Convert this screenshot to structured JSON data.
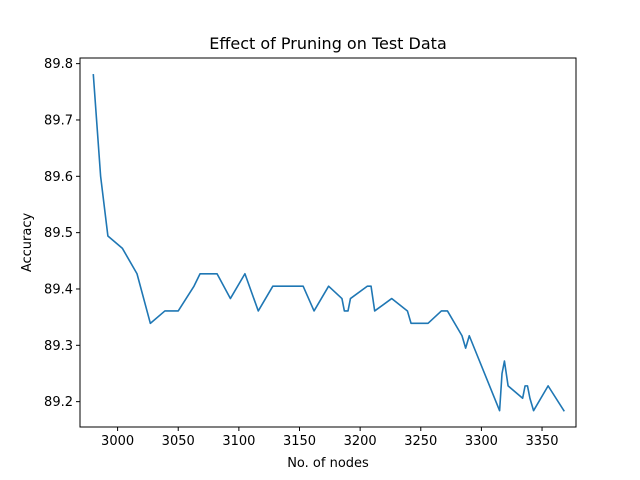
{
  "chart_data": {
    "type": "line",
    "title": "Effect of Pruning on Test Data",
    "xlabel": "No. of nodes",
    "ylabel": "Accuracy",
    "xlim": [
      2969,
      3378
    ],
    "ylim": [
      89.155,
      89.81
    ],
    "xticks": [
      3000,
      3050,
      3100,
      3150,
      3200,
      3250,
      3300,
      3350
    ],
    "yticks": [
      89.2,
      89.3,
      89.4,
      89.5,
      89.6,
      89.7,
      89.8
    ],
    "xtick_labels": [
      "3000",
      "3050",
      "3100",
      "3150",
      "3200",
      "3250",
      "3300",
      "3350"
    ],
    "ytick_labels": [
      "89.2",
      "89.3",
      "89.4",
      "89.5",
      "89.6",
      "89.7",
      "89.8"
    ],
    "grid": false,
    "line_color": "#1f77b4",
    "series": [
      {
        "x": [
          2980,
          2986,
          2992,
          3004,
          3016,
          3027,
          3039,
          3050,
          3063,
          3068,
          3082,
          3093,
          3105,
          3116,
          3128,
          3153,
          3162,
          3174,
          3185,
          3187,
          3190,
          3192,
          3206,
          3209,
          3212,
          3226,
          3239,
          3242,
          3256,
          3267,
          3272,
          3284,
          3287,
          3290,
          3315,
          3317,
          3319,
          3322,
          3334,
          3336,
          3338,
          3340,
          3343,
          3355,
          3368
        ],
        "y": [
          89.78,
          89.6,
          89.494,
          89.472,
          89.427,
          89.339,
          89.361,
          89.361,
          89.405,
          89.427,
          89.427,
          89.383,
          89.427,
          89.361,
          89.405,
          89.405,
          89.361,
          89.405,
          89.383,
          89.361,
          89.361,
          89.383,
          89.405,
          89.405,
          89.361,
          89.383,
          89.361,
          89.339,
          89.339,
          89.361,
          89.361,
          89.317,
          89.295,
          89.317,
          89.184,
          89.25,
          89.272,
          89.228,
          89.206,
          89.228,
          89.228,
          89.206,
          89.184,
          89.228,
          89.184
        ]
      }
    ]
  }
}
